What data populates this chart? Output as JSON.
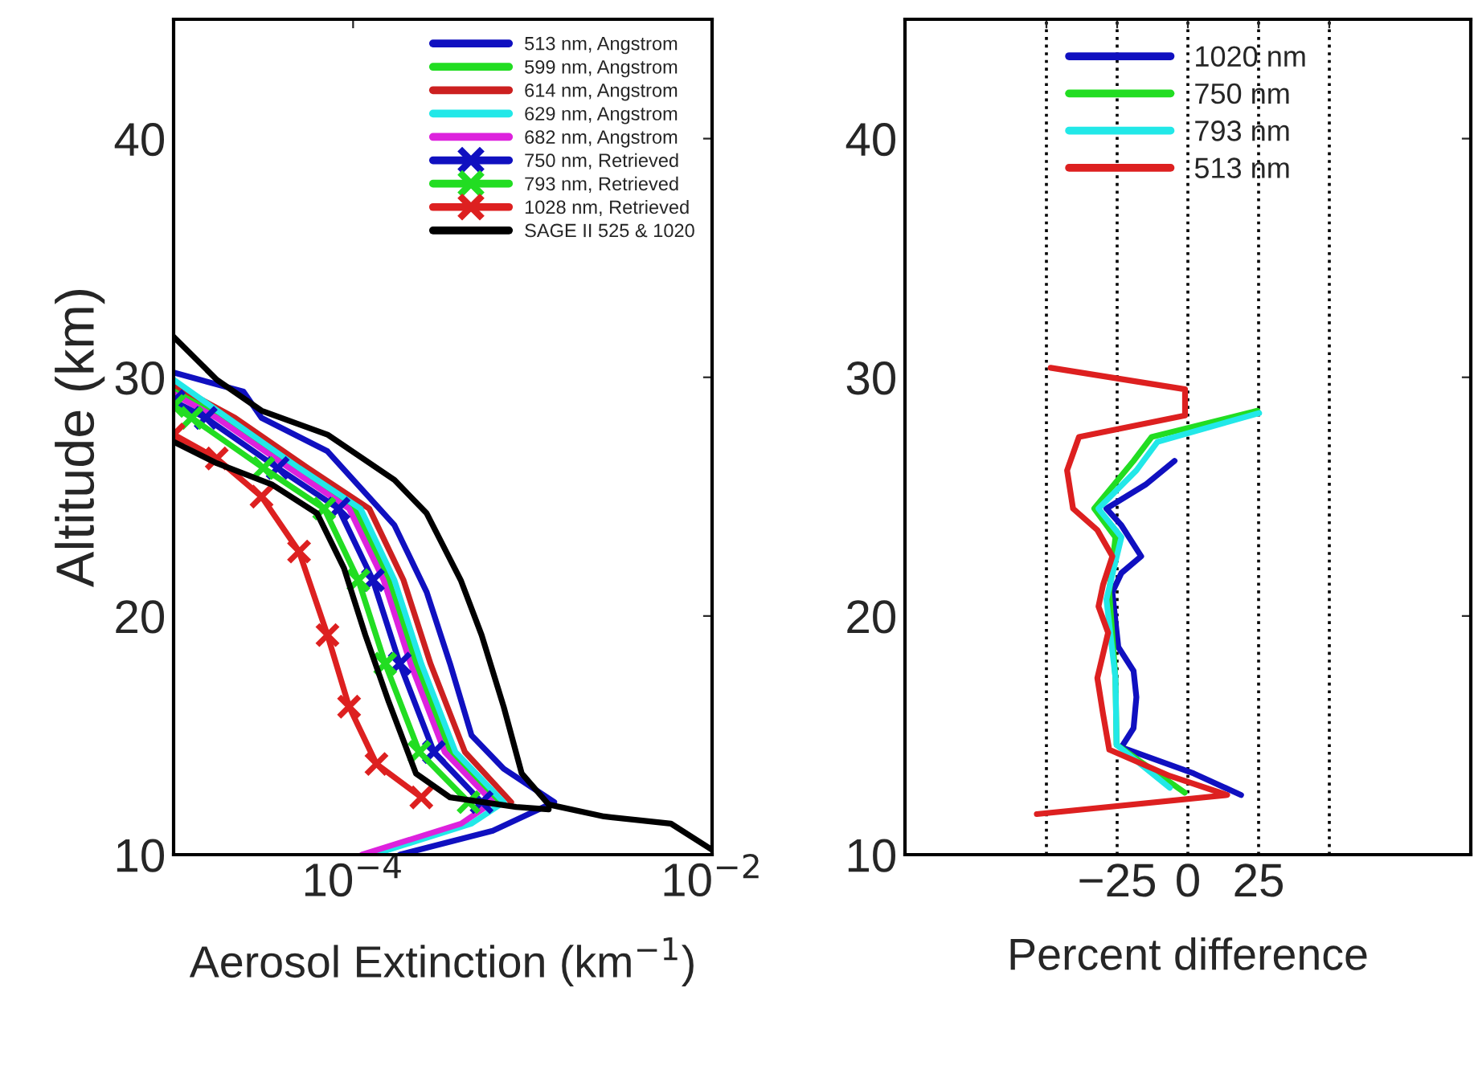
{
  "chart_data": [
    {
      "type": "line",
      "xlabel": "Aerosol Extinction (km$^{−1}$)",
      "ylabel": "Altitude (km)",
      "log": "x",
      "xlim": [
        1e-05,
        0.01
      ],
      "xticks": [
        {
          "value": 0.0001,
          "label": "10$^{−4}$"
        },
        {
          "value": 0.01,
          "label": "10$^{−2}$"
        }
      ],
      "ylim": [
        10,
        45
      ],
      "yticks": [
        10,
        20,
        30,
        40
      ],
      "grid": false,
      "legend": "top right",
      "series": [
        {
          "name": "513 nm, Angstrom",
          "color": "#1010c0",
          "x": [
            1e-05,
            2.45e-05,
            3.09e-05,
            7.2e-05,
            0.00017,
            0.000257,
            0.000347,
            0.000457,
            0.00069,
            0.00132,
            0.0006,
            0.000182
          ],
          "values": [
            30.2,
            29.4,
            28.3,
            26.9,
            23.8,
            21.0,
            18.0,
            15.0,
            13.6,
            12.2,
            11.0,
            10.0
          ]
        },
        {
          "name": "599 nm, Angstrom",
          "color": "#22dd22",
          "x": [
            1e-05,
            1.86e-05,
            4.7e-05,
            0.000102,
            0.000158,
            0.000224,
            0.000347,
            0.00065
          ],
          "values": [
            29.5,
            28.3,
            26.2,
            24.5,
            21.5,
            18.0,
            14.3,
            12.2
          ]
        },
        {
          "name": "614 nm, Angstrom",
          "color": "#cc2020",
          "x": [
            1e-05,
            2.2e-05,
            5.6e-05,
            0.000123,
            0.000191,
            0.00027,
            0.00042,
            0.00076
          ],
          "values": [
            29.7,
            28.3,
            26.2,
            24.5,
            21.5,
            18.0,
            14.3,
            12.2
          ]
        },
        {
          "name": "629 nm, Angstrom",
          "color": "#22e8e8",
          "x": [
            1e-05,
            2e-05,
            5e-05,
            0.00011,
            0.00017,
            0.00024,
            0.000372,
            0.00069,
            0.000457,
            0.000129
          ],
          "values": [
            29.9,
            28.3,
            26.2,
            24.5,
            21.5,
            18.0,
            14.3,
            12.2,
            11.3,
            10.0
          ]
        },
        {
          "name": "682 nm, Angstrom",
          "color": "#dd22dd",
          "x": [
            1e-05,
            1.74e-05,
            4.4e-05,
            9.5e-05,
            0.000148,
            0.000209,
            0.000324,
            0.0006,
            0.0004,
            0.000112
          ],
          "values": [
            29.3,
            28.3,
            26.2,
            24.5,
            21.5,
            18.0,
            14.3,
            12.2,
            11.3,
            10.0
          ]
        },
        {
          "name": "750 nm, Retrieved",
          "color": "#1010c0",
          "marker": "cross",
          "x": [
            1e-05,
            1.51e-05,
            3.8e-05,
            8.3e-05,
            0.000129,
            0.000182,
            0.000282,
            0.00052
          ],
          "values": [
            29.0,
            28.3,
            26.2,
            24.5,
            21.5,
            18.0,
            14.3,
            12.2
          ]
        },
        {
          "name": "793 nm, Retrieved",
          "color": "#22dd22",
          "marker": "cross",
          "x": [
            1e-05,
            1.26e-05,
            3.16e-05,
            6.9e-05,
            0.000107,
            0.000151,
            0.000234,
            0.00044
          ],
          "values": [
            28.8,
            28.3,
            26.2,
            24.5,
            21.5,
            18.0,
            14.3,
            12.2
          ]
        },
        {
          "name": "1028 nm, Retrieved",
          "color": "#dd2020",
          "marker": "cross",
          "x": [
            1e-05,
            1.74e-05,
            3.09e-05,
            5e-05,
            7.2e-05,
            9.5e-05,
            0.000135,
            0.00024
          ],
          "values": [
            27.6,
            26.6,
            25.0,
            22.7,
            19.2,
            16.2,
            13.8,
            12.4
          ]
        },
        {
          "name": "SAGE II 525 & 1020",
          "color": "#000000",
          "x": [
            1e-05,
            1.74e-05,
            3.09e-05,
            7.2e-05,
            0.00017,
            0.000257,
            0.000398,
            0.00052,
            0.00069,
            0.00087,
            0.00123,
            0.0025,
            0.0059,
            0.01
          ],
          "values": [
            31.7,
            29.9,
            28.6,
            27.6,
            25.7,
            24.3,
            21.5,
            19.2,
            16.2,
            13.4,
            12.1,
            11.6,
            11.3,
            10.2
          ]
        },
        {
          "color": "#000000",
          "x": [
            1e-05,
            1.74e-05,
            3.55e-05,
            6.3e-05,
            8.9e-05,
            0.000117,
            0.000158,
            0.000224,
            0.000347,
            0.00081,
            0.00123
          ],
          "values": [
            27.3,
            26.4,
            25.5,
            24.3,
            22.0,
            19.2,
            16.4,
            13.4,
            12.4,
            12.0,
            11.9
          ]
        }
      ]
    },
    {
      "type": "line",
      "xlabel": "Percent difference",
      "xlim": [
        -100,
        100
      ],
      "xticks": [
        {
          "value": -50,
          "label": null
        },
        {
          "value": -25,
          "label": "−25"
        },
        {
          "value": 0,
          "label": "0"
        },
        {
          "value": 25,
          "label": "25"
        },
        {
          "value": 50,
          "label": null
        }
      ],
      "ylim": [
        10,
        45
      ],
      "yticks": [
        10,
        20,
        30,
        40
      ],
      "grid": "x",
      "legend": "top",
      "series": [
        {
          "name": "1020 nm",
          "color": "#1010c0",
          "x": [
            -4.7,
            -15,
            -28.8,
            -23.5,
            -16.5,
            -23.5,
            -26.7,
            -24.6,
            -19.2,
            -18.2,
            -19.2,
            -23.5,
            2.1,
            18.8
          ],
          "values": [
            26.5,
            25.5,
            24.5,
            23.8,
            22.5,
            21.8,
            21.0,
            18.7,
            17.7,
            16.6,
            15.3,
            14.5,
            13.4,
            12.5
          ]
        },
        {
          "name": "750 nm",
          "color": "#22dd22",
          "x": [
            24.6,
            -12.8,
            -19.2,
            -33.1,
            -25.6,
            -27.8,
            -25.6,
            -25.2,
            -1.1
          ],
          "values": [
            28.6,
            27.5,
            26.5,
            24.5,
            23.3,
            21.0,
            17.4,
            14.6,
            12.6
          ]
        },
        {
          "name": "793 nm",
          "color": "#22e8e8",
          "x": [
            25.2,
            -10.7,
            -18.2,
            -31.6,
            -23.5,
            -28.8,
            -25.6,
            -25.2,
            -6.4
          ],
          "values": [
            28.5,
            27.3,
            26.1,
            24.5,
            23.3,
            20.7,
            17.4,
            14.6,
            12.8
          ]
        },
        {
          "name": "513 nm",
          "color": "#dd2020",
          "x": [
            -48.5,
            -1,
            -1,
            -38.5,
            -42.7,
            -40.6,
            -32,
            -26.7,
            -30,
            -31.6,
            -28.2,
            -32,
            -30,
            -27.8,
            -6.4,
            13.9,
            -53.4
          ],
          "values": [
            30.4,
            29.5,
            28.4,
            27.5,
            26.1,
            24.5,
            23.6,
            22.5,
            21.3,
            20.4,
            19.3,
            17.4,
            15.9,
            14.4,
            13.3,
            12.5,
            11.7
          ]
        }
      ]
    }
  ]
}
